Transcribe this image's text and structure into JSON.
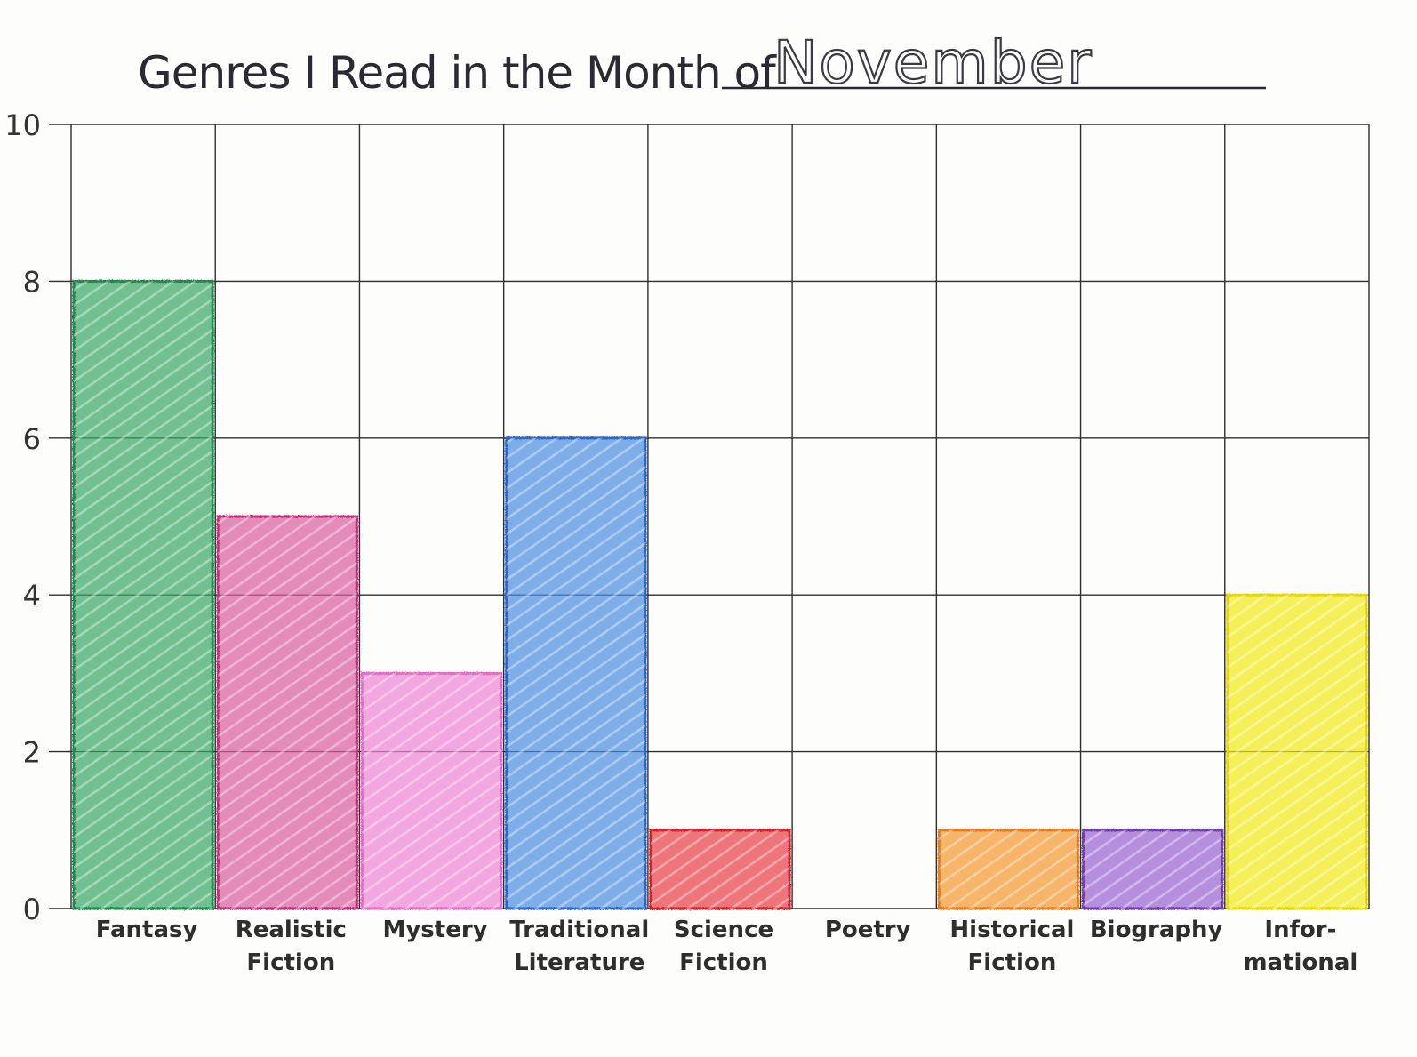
{
  "chart_data": {
    "type": "bar",
    "title": "Genres I Read in the Month of",
    "month": "November",
    "categories": [
      [
        "Fantasy"
      ],
      [
        "Realistic",
        "Fiction"
      ],
      [
        "Mystery"
      ],
      [
        "Traditional",
        "Literature"
      ],
      [
        "Science",
        "Fiction"
      ],
      [
        "Poetry"
      ],
      [
        "Historical",
        "Fiction"
      ],
      [
        "Biography"
      ],
      [
        "Infor-",
        "mational"
      ]
    ],
    "values": [
      8,
      5,
      3,
      6,
      1,
      0,
      1,
      1,
      4
    ],
    "colors": [
      "#3aa86a",
      "#d9609f",
      "#ef86d6",
      "#4f8fe0",
      "#e8424a",
      "#ffffff",
      "#f59a30",
      "#9a62d2",
      "#f2ea1a"
    ],
    "border_colors": [
      "#1e8a4c",
      "#b8307a",
      "#e06cc4",
      "#2c66c8",
      "#d0202c",
      "#ffffff",
      "#e8781c",
      "#6e3aa8",
      "#e8d600"
    ],
    "yticks": [
      0,
      2,
      4,
      6,
      8,
      10
    ],
    "ylim": [
      0,
      10
    ],
    "grid": true,
    "xlabel": "",
    "ylabel": ""
  }
}
